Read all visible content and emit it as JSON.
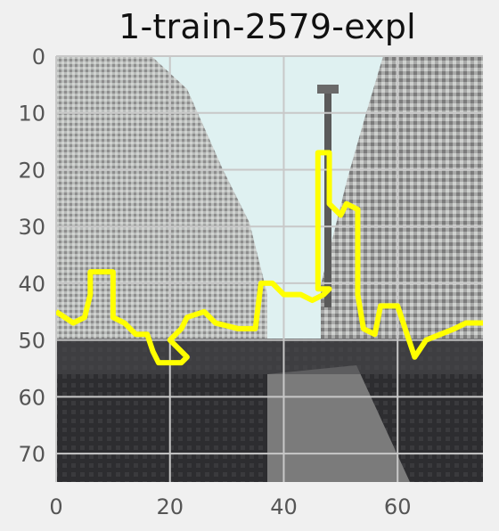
{
  "title": "1-train-2579-expl",
  "axes": {
    "x_ticks": [
      "0",
      "20",
      "40",
      "60"
    ],
    "y_ticks": [
      "0",
      "10",
      "20",
      "30",
      "40",
      "50",
      "60",
      "70"
    ],
    "xlim": [
      0,
      75
    ],
    "ylim": [
      75,
      0
    ],
    "grid": true
  },
  "colors": {
    "figure_bg": "#f0f0f0",
    "sky": "#dff1f1",
    "grid": "#c8c8c8",
    "road": "#7b7b7b",
    "dark": "#2d2d30",
    "overlay": "#ffff00",
    "tick_text": "#555555"
  },
  "overlay_contour": [
    [
      0,
      45
    ],
    [
      3,
      47
    ],
    [
      5,
      46
    ],
    [
      6,
      42
    ],
    [
      6,
      38
    ],
    [
      10,
      38
    ],
    [
      10,
      46
    ],
    [
      12,
      47
    ],
    [
      14,
      49
    ],
    [
      16,
      49
    ],
    [
      17,
      52
    ],
    [
      18,
      54
    ],
    [
      22,
      54
    ],
    [
      23,
      53
    ],
    [
      20,
      50
    ],
    [
      22,
      48
    ],
    [
      23,
      46
    ],
    [
      26,
      45
    ],
    [
      28,
      47
    ],
    [
      32,
      48
    ],
    [
      35,
      48
    ],
    [
      36,
      40
    ],
    [
      38,
      40
    ],
    [
      40,
      42
    ],
    [
      43,
      42
    ],
    [
      45,
      43
    ],
    [
      47,
      42
    ],
    [
      48,
      41
    ],
    [
      46,
      41
    ],
    [
      46,
      17
    ],
    [
      48,
      17
    ],
    [
      48,
      26
    ],
    [
      50,
      28
    ],
    [
      51,
      26
    ],
    [
      53,
      27
    ],
    [
      53,
      42
    ],
    [
      54,
      48
    ],
    [
      56,
      49
    ],
    [
      57,
      44
    ],
    [
      60,
      44
    ],
    [
      61,
      47
    ],
    [
      62,
      50
    ],
    [
      63,
      53
    ],
    [
      65,
      50
    ],
    [
      70,
      48
    ],
    [
      72,
      47
    ],
    [
      75,
      47
    ]
  ]
}
